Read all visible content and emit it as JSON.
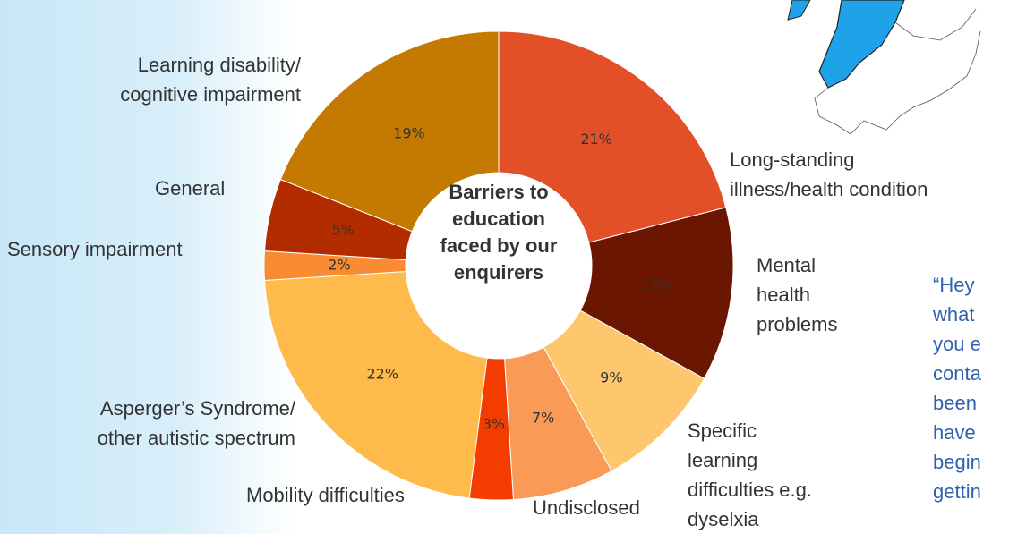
{
  "chart_data": {
    "type": "donut",
    "title_lines": [
      "Barriers to",
      "education",
      "faced by our",
      "enquirers"
    ],
    "categories": [
      "Long-standing\nillness/health condition",
      "Mental\nhealth\nproblems",
      "Specific\nlearning\ndifficulties e.g.\ndyselxia",
      "Undisclosed",
      "Mobility difficulties",
      "Asperger’s Syndrome/\nother autistic spectrum",
      "Sensory impairment",
      "General",
      "Learning disability/\ncognitive impairment"
    ],
    "values": [
      21,
      12,
      9,
      7,
      3,
      22,
      2,
      5,
      19
    ],
    "value_labels": [
      "21%",
      "12%",
      "9%",
      "7%",
      "3%",
      "22%",
      "2%",
      "5%",
      "19%"
    ],
    "colors": [
      "#e34f26",
      "#6a1600",
      "#fec76e",
      "#f99b57",
      "#f23c00",
      "#feba4b",
      "#f98b32",
      "#b32c00",
      "#c47a00"
    ]
  },
  "quote_lines": [
    "“Hey",
    "what",
    "you e",
    "conta",
    "been",
    "have",
    "begin",
    "gettin"
  ]
}
